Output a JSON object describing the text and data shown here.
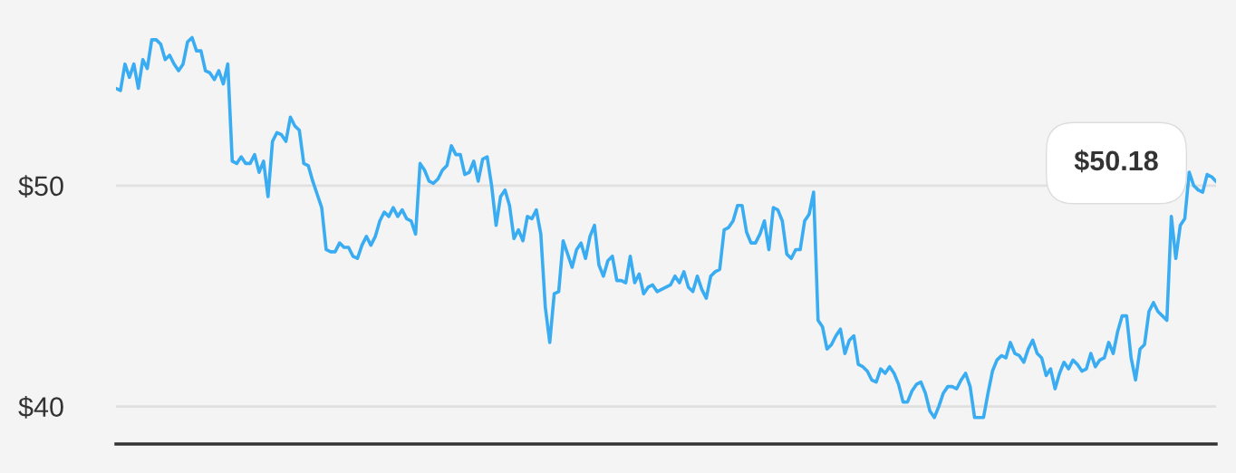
{
  "chart_data": {
    "type": "line",
    "categories": [
      null,
      null,
      null,
      null,
      null,
      null,
      null,
      null,
      null,
      null,
      null,
      null,
      null,
      null,
      null,
      null,
      null,
      null,
      null,
      null,
      null,
      null,
      null,
      null,
      null,
      null,
      null,
      null,
      null,
      null,
      null,
      null,
      null,
      null,
      null,
      null,
      null,
      null,
      null,
      null,
      null,
      null,
      null,
      null,
      null,
      null,
      null,
      null,
      null,
      null,
      null,
      null,
      null,
      null,
      null,
      null,
      null,
      null,
      null,
      null,
      null,
      null,
      null,
      null,
      null,
      null,
      null,
      null,
      null,
      null,
      null,
      null,
      null,
      null,
      null,
      null,
      null,
      null,
      null,
      null,
      null,
      null,
      null,
      null,
      null,
      null,
      null,
      null,
      null,
      null,
      null,
      null,
      null,
      null,
      null,
      null,
      null,
      null,
      null,
      null,
      null,
      null,
      null,
      null,
      null,
      null,
      null,
      null,
      null,
      null,
      null,
      null,
      null,
      null,
      null,
      null,
      null,
      null,
      null,
      null,
      null,
      null,
      null,
      null,
      null,
      null,
      null,
      null,
      null,
      null,
      null,
      null,
      null,
      null,
      null,
      null,
      null,
      null,
      null,
      null,
      null,
      null,
      null,
      null,
      null,
      null,
      null,
      null,
      null,
      null,
      null,
      null,
      null,
      null,
      null,
      null,
      null,
      null,
      null,
      null,
      null,
      null,
      null,
      null,
      null,
      null,
      null,
      null,
      null,
      null,
      null,
      null,
      null,
      null,
      null,
      null,
      null,
      null,
      null,
      null,
      null,
      null,
      null,
      null,
      null,
      null,
      null,
      null,
      null,
      null,
      null,
      null,
      null,
      null,
      null,
      null,
      null,
      null,
      null,
      null,
      null,
      null,
      null,
      null,
      null,
      null,
      null,
      null,
      null,
      null,
      null,
      null,
      null,
      null,
      null,
      null,
      null,
      null,
      null,
      null,
      null,
      null,
      null,
      null,
      null,
      null,
      null,
      null,
      null,
      null,
      null,
      null,
      null,
      null,
      null,
      null,
      null,
      null,
      null,
      null,
      null,
      null,
      null,
      null,
      null,
      null,
      null
    ],
    "series": [
      {
        "color": "#3aacf2",
        "values": [
          54.4,
          54.3,
          55.5,
          54.9,
          55.5,
          54.4,
          55.7,
          55.3,
          56.6,
          56.6,
          56.4,
          55.7,
          55.9,
          55.5,
          55.2,
          55.5,
          56.5,
          56.7,
          56.1,
          56.1,
          55.2,
          55.1,
          54.8,
          55.2,
          54.6,
          55.5,
          51.1,
          51.0,
          51.3,
          51.0,
          51.0,
          51.4,
          50.6,
          51.1,
          49.5,
          52.0,
          52.4,
          52.3,
          52.0,
          53.1,
          52.7,
          52.5,
          51.0,
          50.9,
          50.2,
          49.6,
          49.0,
          47.1,
          47.0,
          47.0,
          47.4,
          47.2,
          47.2,
          46.8,
          46.7,
          47.3,
          47.7,
          47.3,
          47.7,
          48.4,
          48.8,
          48.6,
          49.0,
          48.6,
          48.9,
          48.5,
          48.4,
          47.8,
          51.0,
          50.7,
          50.2,
          50.1,
          50.3,
          50.7,
          50.9,
          51.8,
          51.4,
          51.4,
          50.5,
          50.6,
          51.1,
          50.2,
          51.2,
          51.3,
          50.0,
          48.2,
          49.5,
          49.8,
          49.1,
          47.6,
          48.0,
          47.5,
          48.6,
          48.5,
          48.9,
          47.8,
          44.5,
          42.9,
          45.1,
          45.2,
          47.5,
          46.9,
          46.3,
          47.1,
          47.4,
          46.7,
          47.7,
          48.2,
          46.4,
          45.9,
          46.6,
          46.8,
          45.7,
          45.7,
          45.6,
          46.8,
          45.6,
          46.0,
          45.1,
          45.4,
          45.5,
          45.2,
          45.3,
          45.4,
          45.5,
          45.9,
          45.6,
          46.1,
          45.4,
          45.2,
          45.9,
          45.3,
          44.9,
          45.9,
          46.1,
          46.2,
          48.0,
          48.1,
          48.4,
          49.1,
          49.1,
          47.9,
          47.4,
          47.4,
          47.8,
          48.4,
          47.1,
          49.0,
          48.9,
          48.4,
          46.9,
          46.7,
          47.1,
          47.1,
          48.4,
          48.7,
          49.7,
          43.9,
          43.6,
          42.6,
          42.8,
          43.2,
          43.5,
          42.4,
          43.0,
          43.2,
          41.9,
          41.8,
          41.6,
          41.2,
          41.1,
          41.7,
          41.5,
          41.8,
          41.5,
          41.0,
          40.2,
          40.2,
          40.7,
          41.0,
          41.1,
          40.6,
          39.8,
          39.5,
          40.0,
          40.6,
          40.9,
          40.9,
          40.8,
          41.2,
          41.5,
          40.9,
          39.5,
          39.5,
          39.5,
          40.6,
          41.6,
          42.1,
          42.3,
          42.2,
          42.9,
          42.4,
          42.3,
          42.0,
          42.6,
          43.0,
          42.4,
          42.2,
          41.4,
          41.7,
          40.8,
          41.5,
          42.0,
          41.7,
          42.1,
          41.9,
          41.6,
          41.7,
          42.4,
          41.8,
          42.1,
          42.2,
          42.9,
          42.4,
          43.4,
          44.1,
          44.1,
          42.2,
          41.2,
          42.6,
          42.8,
          44.3,
          44.7,
          44.3,
          44.1,
          43.9,
          48.6,
          46.7,
          48.2,
          48.5,
          50.6,
          50.0,
          49.8,
          49.7,
          50.5,
          50.4,
          50.18
        ]
      }
    ],
    "ylim": [
      38.3,
      58.4
    ],
    "yticks": [
      {
        "value": 40,
        "label": "$40"
      },
      {
        "value": 50,
        "label": "$50"
      }
    ],
    "grid": "y",
    "tick_labels": "y",
    "line_style": "solid",
    "marker": "none",
    "annotations": [
      "$50.18"
    ]
  }
}
